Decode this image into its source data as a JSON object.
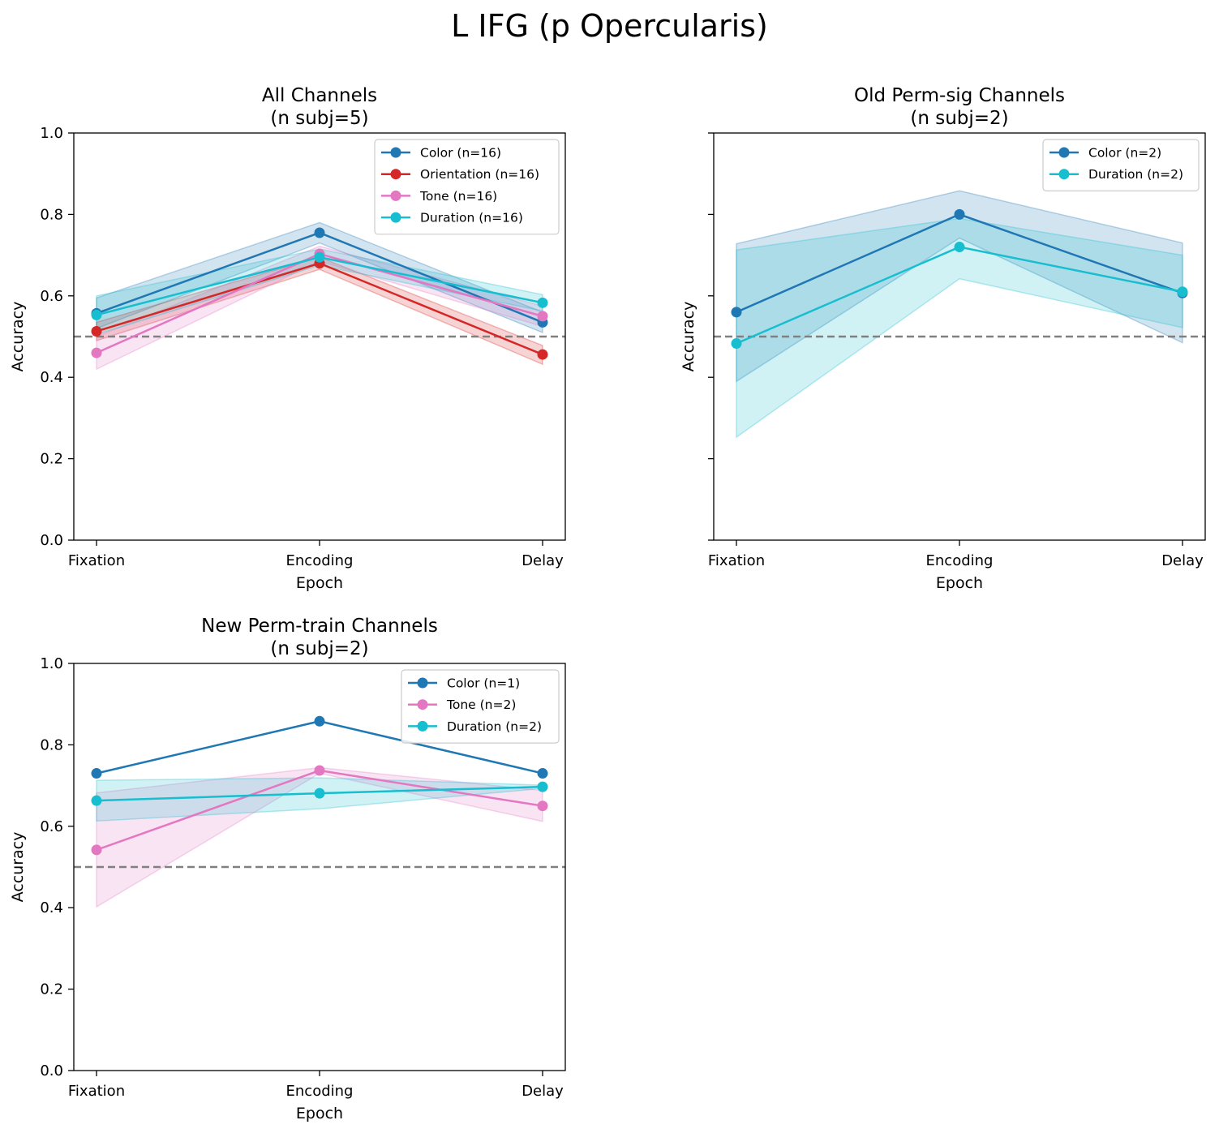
{
  "suptitle": "L IFG (p Opercularis)",
  "chance_level": 0.5,
  "colors": {
    "Color": "#1f77b4",
    "Orientation": "#d62728",
    "Tone": "#e377c2",
    "Duration": "#17becf",
    "chance_line": "#808080"
  },
  "chart_data": [
    {
      "type": "line",
      "title_line1": "All Channels",
      "title_line2": "(n subj=5)",
      "xlabel": "Epoch",
      "ylabel": "Accuracy",
      "categories": [
        "Fixation",
        "Encoding",
        "Delay"
      ],
      "ylim": [
        0,
        1
      ],
      "yticks": [
        "0.0",
        "0.2",
        "0.4",
        "0.6",
        "0.8",
        "1.0"
      ],
      "legend_position": "top-right",
      "series": [
        {
          "name": "Color (n=16)",
          "key": "Color",
          "values": [
            0.557,
            0.755,
            0.535
          ],
          "lower": [
            0.52,
            0.73,
            0.51
          ],
          "upper": [
            0.595,
            0.78,
            0.56
          ]
        },
        {
          "name": "Orientation (n=16)",
          "key": "Orientation",
          "values": [
            0.513,
            0.68,
            0.456
          ],
          "lower": [
            0.49,
            0.665,
            0.432
          ],
          "upper": [
            0.535,
            0.695,
            0.478
          ]
        },
        {
          "name": "Tone (n=16)",
          "key": "Tone",
          "values": [
            0.46,
            0.703,
            0.55
          ],
          "lower": [
            0.42,
            0.685,
            0.525
          ],
          "upper": [
            0.5,
            0.722,
            0.575
          ]
        },
        {
          "name": "Duration (n=16)",
          "key": "Duration",
          "values": [
            0.553,
            0.695,
            0.583
          ],
          "lower": [
            0.505,
            0.675,
            0.563
          ],
          "upper": [
            0.6,
            0.715,
            0.603
          ]
        }
      ]
    },
    {
      "type": "line",
      "title_line1": "Old Perm-sig Channels",
      "title_line2": "(n subj=2)",
      "xlabel": "Epoch",
      "ylabel": "Accuracy",
      "categories": [
        "Fixation",
        "Encoding",
        "Delay"
      ],
      "ylim": [
        0,
        1
      ],
      "yticks": [],
      "legend_position": "top-right",
      "series": [
        {
          "name": "Color (n=2)",
          "key": "Color",
          "values": [
            0.56,
            0.8,
            0.607
          ],
          "lower": [
            0.39,
            0.742,
            0.485
          ],
          "upper": [
            0.728,
            0.858,
            0.73
          ]
        },
        {
          "name": "Duration (n=2)",
          "key": "Duration",
          "values": [
            0.483,
            0.72,
            0.61
          ],
          "lower": [
            0.253,
            0.642,
            0.522
          ],
          "upper": [
            0.713,
            0.79,
            0.7
          ]
        }
      ]
    },
    {
      "type": "line",
      "title_line1": "New Perm-train Channels",
      "title_line2": "(n subj=2)",
      "xlabel": "Epoch",
      "ylabel": "Accuracy",
      "categories": [
        "Fixation",
        "Encoding",
        "Delay"
      ],
      "ylim": [
        0,
        1
      ],
      "yticks": [
        "0.0",
        "0.2",
        "0.4",
        "0.6",
        "0.8",
        "1.0"
      ],
      "legend_position": "top-right",
      "series": [
        {
          "name": "Color (n=1)",
          "key": "Color",
          "values": [
            0.73,
            0.858,
            0.73
          ]
        },
        {
          "name": "Tone (n=2)",
          "key": "Tone",
          "values": [
            0.542,
            0.737,
            0.65
          ],
          "lower": [
            0.402,
            0.73,
            0.612
          ],
          "upper": [
            0.682,
            0.744,
            0.688
          ]
        },
        {
          "name": "Duration (n=2)",
          "key": "Duration",
          "values": [
            0.663,
            0.681,
            0.697
          ],
          "lower": [
            0.613,
            0.643,
            0.693
          ],
          "upper": [
            0.713,
            0.719,
            0.701
          ]
        }
      ]
    }
  ]
}
